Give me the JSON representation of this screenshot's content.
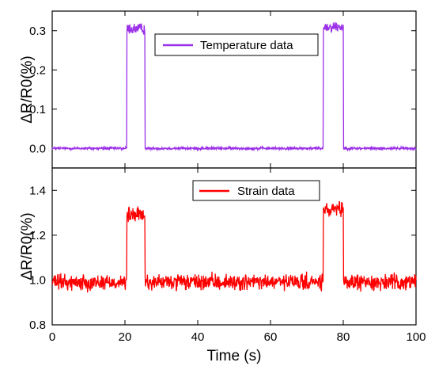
{
  "chart_data": {
    "type": "line",
    "xlabel": "Time (s)",
    "xlim": [
      0,
      100
    ],
    "xticks": [
      0,
      20,
      40,
      60,
      80,
      100
    ],
    "panels": [
      {
        "id": "temperature",
        "ylabel": "ΔR/R0(%)",
        "ylim": [
          -0.05,
          0.35
        ],
        "yticks": [
          0.0,
          0.1,
          0.2,
          0.3
        ],
        "ytick_labels": [
          "0.0",
          "0.1",
          "0.2",
          "0.3"
        ],
        "legend_position": "top-center",
        "series": [
          {
            "name": "Temperature data",
            "color": "#9b30e8",
            "baseline": 0.0,
            "noise": 0.003,
            "pulses": [
              {
                "start": 20.5,
                "end": 25.5,
                "level": 0.305,
                "noise": 0.012
              },
              {
                "start": 74.5,
                "end": 80.0,
                "level": 0.31,
                "noise": 0.012
              }
            ]
          }
        ]
      },
      {
        "id": "strain",
        "ylabel": "ΔR/R0(%)",
        "ylim": [
          0.8,
          1.5
        ],
        "yticks": [
          0.8,
          1.0,
          1.2,
          1.4
        ],
        "ytick_labels": [
          "0.8",
          "1.0",
          "1.2",
          "1.4"
        ],
        "legend_position": "top-center",
        "series": [
          {
            "name": "Strain data",
            "color": "#ff0000",
            "baseline": 0.99,
            "noise": 0.03,
            "pulses": [
              {
                "start": 20.5,
                "end": 25.5,
                "level": 1.29,
                "noise": 0.03
              },
              {
                "start": 74.5,
                "end": 80.0,
                "level": 1.31,
                "noise": 0.03
              }
            ]
          }
        ]
      }
    ]
  }
}
